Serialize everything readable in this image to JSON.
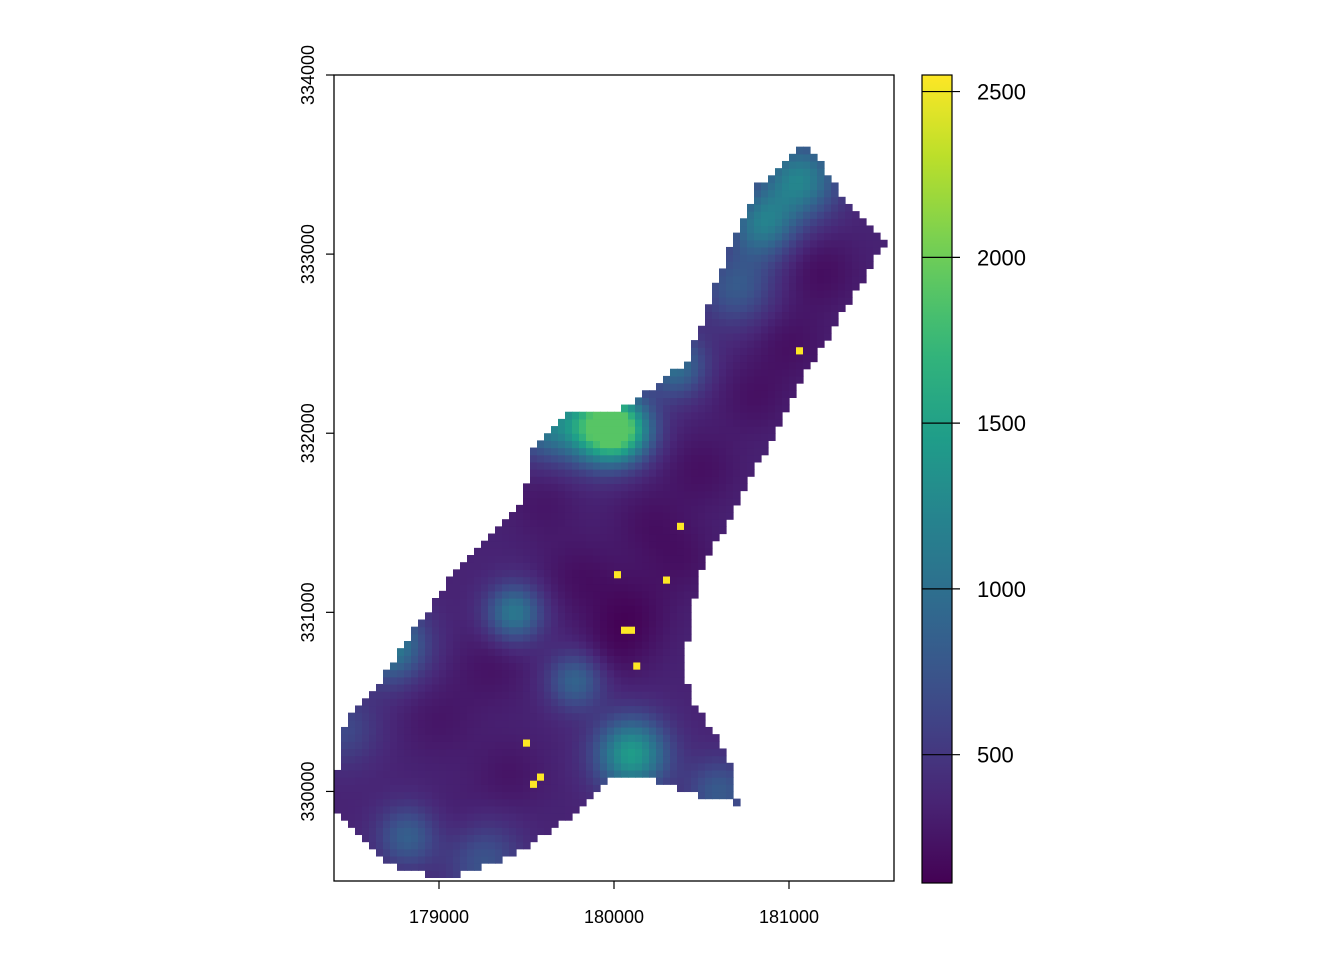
{
  "chart_data": {
    "type": "heatmap",
    "title": "",
    "xlabel": "",
    "ylabel": "",
    "xlim": [
      178400,
      181600
    ],
    "ylim": [
      329500,
      334000
    ],
    "x_ticks": [
      179000,
      180000,
      181000
    ],
    "x_tick_labels": [
      "179000",
      "180000",
      "181000"
    ],
    "y_ticks": [
      330000,
      331000,
      332000,
      333000,
      334000
    ],
    "y_tick_labels": [
      "330000",
      "331000",
      "332000",
      "333000",
      "334000"
    ],
    "colorbar": {
      "palette": "viridis",
      "range": [
        113,
        2550
      ],
      "ticks": [
        500,
        1000,
        1500,
        2000,
        2500
      ],
      "tick_labels": [
        "500",
        "1000",
        "1500",
        "2000",
        "2500"
      ]
    },
    "cell_size": 40,
    "background_value": 350,
    "outline": [
      [
        178400,
        330000
      ],
      [
        178470,
        330400
      ],
      [
        178650,
        330600
      ],
      [
        178860,
        330900
      ],
      [
        179070,
        331200
      ],
      [
        179300,
        331450
      ],
      [
        179480,
        331600
      ],
      [
        179540,
        331900
      ],
      [
        179720,
        332100
      ],
      [
        180050,
        332140
      ],
      [
        180250,
        332280
      ],
      [
        180420,
        332400
      ],
      [
        180530,
        332700
      ],
      [
        180650,
        333000
      ],
      [
        180820,
        333380
      ],
      [
        181100,
        333620
      ],
      [
        181300,
        333330
      ],
      [
        181560,
        333080
      ],
      [
        181390,
        332810
      ],
      [
        181070,
        332300
      ],
      [
        180730,
        331650
      ],
      [
        180480,
        331200
      ],
      [
        180400,
        330700
      ],
      [
        180450,
        330500
      ],
      [
        180650,
        330200
      ],
      [
        180710,
        329930
      ],
      [
        180480,
        329980
      ],
      [
        180150,
        330090
      ],
      [
        179980,
        330060
      ],
      [
        179800,
        329900
      ],
      [
        179430,
        329650
      ],
      [
        179080,
        329520
      ],
      [
        178770,
        329560
      ],
      [
        178430,
        329850
      ]
    ],
    "anomalies": [
      {
        "x": 179900,
        "y": 332040,
        "value": 1650,
        "radius": 140
      },
      {
        "x": 180050,
        "y": 332020,
        "value": 1500,
        "radius": 120
      },
      {
        "x": 181060,
        "y": 333420,
        "value": 1200,
        "radius": 150
      },
      {
        "x": 180850,
        "y": 333170,
        "value": 1100,
        "radius": 130
      },
      {
        "x": 180700,
        "y": 332820,
        "value": 800,
        "radius": 150
      },
      {
        "x": 179600,
        "y": 332050,
        "value": 1000,
        "radius": 130
      },
      {
        "x": 180350,
        "y": 332380,
        "value": 1000,
        "radius": 120
      },
      {
        "x": 180100,
        "y": 330210,
        "value": 1450,
        "radius": 140
      },
      {
        "x": 178720,
        "y": 330820,
        "value": 1150,
        "radius": 140
      },
      {
        "x": 179430,
        "y": 331000,
        "value": 1100,
        "radius": 110
      },
      {
        "x": 179780,
        "y": 330620,
        "value": 900,
        "radius": 110
      },
      {
        "x": 178820,
        "y": 329750,
        "value": 850,
        "radius": 120
      },
      {
        "x": 179250,
        "y": 329620,
        "value": 750,
        "radius": 150
      },
      {
        "x": 180600,
        "y": 330000,
        "value": 800,
        "radius": 130
      },
      {
        "x": 178450,
        "y": 330350,
        "value": 650,
        "radius": 140
      },
      {
        "x": 181180,
        "y": 332900,
        "value": 200,
        "radius": 150
      },
      {
        "x": 181000,
        "y": 332500,
        "value": 220,
        "radius": 150
      },
      {
        "x": 180800,
        "y": 332200,
        "value": 230,
        "radius": 140
      },
      {
        "x": 180500,
        "y": 331800,
        "value": 220,
        "radius": 150
      },
      {
        "x": 180200,
        "y": 331500,
        "value": 230,
        "radius": 150
      },
      {
        "x": 180100,
        "y": 331000,
        "value": 180,
        "radius": 160
      },
      {
        "x": 179800,
        "y": 331200,
        "value": 220,
        "radius": 150
      },
      {
        "x": 179600,
        "y": 331600,
        "value": 260,
        "radius": 140
      },
      {
        "x": 179300,
        "y": 330700,
        "value": 240,
        "radius": 150
      },
      {
        "x": 179000,
        "y": 330400,
        "value": 260,
        "radius": 150
      },
      {
        "x": 179400,
        "y": 330100,
        "value": 250,
        "radius": 140
      },
      {
        "x": 180000,
        "y": 330800,
        "value": 230,
        "radius": 140
      },
      {
        "x": 180400,
        "y": 331300,
        "value": 240,
        "radius": 140
      },
      {
        "x": 179100,
        "y": 329800,
        "value": 280,
        "radius": 140
      }
    ],
    "hotspots": [
      {
        "x": 181060,
        "y": 332460,
        "value": 2550
      },
      {
        "x": 180380,
        "y": 331480,
        "value": 2550
      },
      {
        "x": 180020,
        "y": 331210,
        "value": 2550
      },
      {
        "x": 180300,
        "y": 331180,
        "value": 2550
      },
      {
        "x": 180060,
        "y": 330900,
        "value": 2550
      },
      {
        "x": 180100,
        "y": 330900,
        "value": 2550
      },
      {
        "x": 180130,
        "y": 330700,
        "value": 2550
      },
      {
        "x": 179500,
        "y": 330270,
        "value": 2550
      },
      {
        "x": 179580,
        "y": 330080,
        "value": 2550
      },
      {
        "x": 179540,
        "y": 330040,
        "value": 2550
      }
    ]
  }
}
